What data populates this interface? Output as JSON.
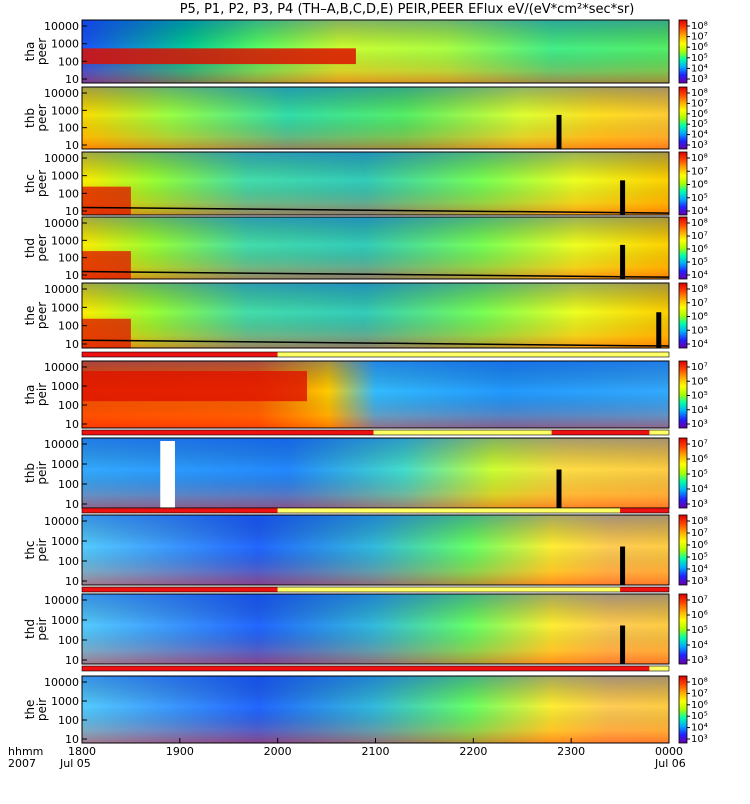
{
  "title": "P5, P1, P2, P3, P4 (TH–A,B,C,D,E) PEIR,PEER EFlux eV/(eV*cm²*sec*sr)",
  "colors": {
    "cbar": [
      "#6a00a8",
      "#2222ff",
      "#00aaff",
      "#00ffaa",
      "#aaff00",
      "#ffff00",
      "#ffaa00",
      "#ff4400",
      "#dd0000"
    ],
    "high_band": "#dd1100",
    "mode_bar_red": "#ee1111",
    "mode_bar_yellow": "#ffff66",
    "void": "#000000"
  },
  "chart_data": {
    "type": "heatmap",
    "x_axis": {
      "ticks": [
        "1800",
        "1900",
        "2000",
        "2100",
        "2200",
        "2300",
        "0000"
      ],
      "label_row1": "hhmm",
      "label_row2": "2007",
      "date_start": "Jul 05",
      "date_end": "Jul 06",
      "range": [
        "18:00",
        "24:00"
      ]
    },
    "y_axis": {
      "scale": "log",
      "ticks": [
        "10",
        "100",
        "1000",
        "10000"
      ]
    },
    "panels": [
      {
        "label": [
          "tha",
          "peer"
        ],
        "cbar_ticks": [
          "10⁸",
          "10⁷",
          "10⁶",
          "10⁵",
          "10⁴",
          "10³"
        ],
        "profile": "tha_peer"
      },
      {
        "label": [
          "thb",
          "peer"
        ],
        "cbar_ticks": [
          "10⁸",
          "10⁷",
          "10⁶",
          "10⁵",
          "10⁴",
          "10³"
        ],
        "profile": "late_peer",
        "void_hour": 22.85
      },
      {
        "label": [
          "thc",
          "peer"
        ],
        "cbar_ticks": [
          "10⁸",
          "10⁷",
          "10⁶",
          "10⁵",
          "10⁴"
        ],
        "profile": "early_peer",
        "void_hour": 23.5
      },
      {
        "label": [
          "thd",
          "peer"
        ],
        "cbar_ticks": [
          "10⁸",
          "10⁷",
          "10⁶",
          "10⁵",
          "10⁴"
        ],
        "profile": "early_peer",
        "void_hour": 23.5
      },
      {
        "label": [
          "the",
          "peer"
        ],
        "cbar_ticks": [
          "10⁸",
          "10⁷",
          "10⁶",
          "10⁵",
          "10⁴"
        ],
        "profile": "early_peer",
        "void_hour": 23.87
      },
      {
        "label": [
          "tha",
          "peir"
        ],
        "cbar_ticks": [
          "10⁷",
          "10⁶",
          "10⁵",
          "10⁴",
          "10³"
        ],
        "profile": "tha_peir"
      },
      {
        "label": [
          "thb",
          "peir"
        ],
        "cbar_ticks": [
          "10⁷",
          "10⁶",
          "10⁵",
          "10⁴",
          "10³"
        ],
        "profile": "late_peir",
        "void_hour": 22.85,
        "gap_hours": [
          18.8,
          18.95
        ]
      },
      {
        "label": [
          "thc",
          "peir"
        ],
        "cbar_ticks": [
          "10⁸",
          "10⁷",
          "10⁶",
          "10⁵",
          "10⁴",
          "10³"
        ],
        "profile": "peir",
        "void_hour": 23.5
      },
      {
        "label": [
          "thd",
          "peir"
        ],
        "cbar_ticks": [
          "10⁷",
          "10⁶",
          "10⁵",
          "10⁴",
          "10³"
        ],
        "profile": "peir",
        "void_hour": 23.5
      },
      {
        "label": [
          "the",
          "peir"
        ],
        "cbar_ticks": [
          "10⁸",
          "10⁷",
          "10⁶",
          "10⁵",
          "10⁴",
          "10³"
        ],
        "profile": "peir"
      }
    ],
    "mode_bars": [
      {
        "after_panel": 4,
        "segments": [
          [
            18.0,
            20.0,
            "red"
          ],
          [
            20.0,
            24.0,
            "yellow"
          ]
        ]
      },
      {
        "after_panel": 5,
        "segments": [
          [
            18.0,
            20.98,
            "red"
          ],
          [
            20.98,
            22.8,
            "yellow"
          ],
          [
            22.8,
            23.8,
            "red"
          ],
          [
            23.8,
            24.0,
            "yellow"
          ]
        ]
      },
      {
        "after_panel": 6,
        "segments": [
          [
            18.0,
            20.0,
            "red"
          ],
          [
            20.0,
            23.5,
            "yellow"
          ],
          [
            23.5,
            24.0,
            "red"
          ]
        ]
      },
      {
        "after_panel": 7,
        "segments": [
          [
            18.0,
            20.0,
            "red"
          ],
          [
            20.0,
            23.5,
            "yellow"
          ],
          [
            23.5,
            24.0,
            "red"
          ]
        ]
      },
      {
        "after_panel": 8,
        "segments": [
          [
            18.0,
            23.8,
            "red"
          ],
          [
            23.8,
            24.0,
            "yellow"
          ]
        ]
      }
    ]
  }
}
